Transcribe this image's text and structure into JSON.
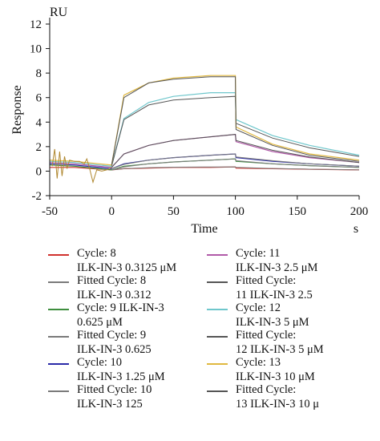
{
  "chart_data": {
    "type": "line",
    "title": "",
    "xlabel": "Time",
    "xunit": "s",
    "ylabel": "Response",
    "yunit": "RU",
    "xlim": [
      -50,
      200
    ],
    "ylim": [
      -2,
      12
    ],
    "xticks": [
      "-50",
      "0",
      "50",
      "100",
      "150",
      "200"
    ],
    "yticks": [
      "-2",
      "0",
      "2",
      "4",
      "6",
      "8",
      "10",
      "12"
    ],
    "injection_start": 0,
    "injection_end": 100,
    "series": [
      {
        "name": "Cycle: 8\nILK-IN-3 0.3125 μM",
        "color": "#d0312d",
        "kind": "raw",
        "x": [
          -50,
          -30,
          0,
          10,
          30,
          50,
          80,
          100,
          100.5,
          130,
          160,
          200
        ],
        "y": [
          0.3,
          0.3,
          0.1,
          0.2,
          0.25,
          0.3,
          0.3,
          0.35,
          0.25,
          0.2,
          0.15,
          0.1
        ]
      },
      {
        "name": "Fitted Cycle: 8\nILK-IN-3 0.312",
        "color": "#7a7a7a",
        "kind": "fit",
        "x": [
          0,
          10,
          30,
          50,
          80,
          100,
          100.5,
          130,
          160,
          200
        ],
        "y": [
          0.1,
          0.2,
          0.28,
          0.32,
          0.34,
          0.35,
          0.3,
          0.22,
          0.16,
          0.1
        ]
      },
      {
        "name": "Cycle: 9 ILK-IN-3\n0.625 μM",
        "color": "#3e8e3e",
        "kind": "raw",
        "x": [
          -50,
          -30,
          0,
          10,
          30,
          50,
          80,
          100,
          100.5,
          130,
          160,
          200
        ],
        "y": [
          0.5,
          0.4,
          0.1,
          0.4,
          0.6,
          0.75,
          0.9,
          1.0,
          0.8,
          0.6,
          0.45,
          0.3
        ]
      },
      {
        "name": "Fitted Cycle: 9\nILK-IN-3 0.625",
        "color": "#7a7a7a",
        "kind": "fit",
        "x": [
          0,
          10,
          30,
          50,
          80,
          100,
          100.5,
          130,
          160,
          200
        ],
        "y": [
          0.1,
          0.35,
          0.6,
          0.75,
          0.9,
          1.0,
          0.85,
          0.6,
          0.45,
          0.3
        ]
      },
      {
        "name": "Cycle: 10\nILK-IN-3 1.25 μM",
        "color": "#2a2aa8",
        "kind": "raw",
        "x": [
          -50,
          -30,
          0,
          10,
          30,
          50,
          80,
          100,
          100.5,
          130,
          160,
          200
        ],
        "y": [
          0.6,
          0.5,
          0.2,
          0.6,
          0.9,
          1.1,
          1.3,
          1.4,
          1.1,
          0.8,
          0.6,
          0.4
        ]
      },
      {
        "name": "Fitted Cycle: 10\nILK-IN-3 125",
        "color": "#7a7a7a",
        "kind": "fit",
        "x": [
          0,
          10,
          30,
          50,
          80,
          100,
          100.5,
          130,
          160,
          200
        ],
        "y": [
          0.2,
          0.55,
          0.9,
          1.1,
          1.3,
          1.4,
          1.15,
          0.85,
          0.6,
          0.4
        ]
      },
      {
        "name": "Cycle: 11\nILK-IN-3 2.5 μM",
        "color": "#b05aa8",
        "kind": "raw",
        "x": [
          -50,
          -30,
          0,
          10,
          30,
          50,
          80,
          100,
          100.5,
          130,
          160,
          200
        ],
        "y": [
          0.7,
          0.6,
          0.3,
          1.4,
          2.1,
          2.5,
          2.8,
          3.0,
          2.4,
          1.6,
          1.1,
          0.7
        ]
      },
      {
        "name": "Fitted Cycle:\n11 ILK-IN-3 2.5",
        "color": "#555555",
        "kind": "fit",
        "x": [
          0,
          10,
          30,
          50,
          80,
          100,
          100.5,
          130,
          160,
          200
        ],
        "y": [
          0.3,
          1.4,
          2.1,
          2.5,
          2.8,
          3.0,
          2.5,
          1.7,
          1.15,
          0.7
        ]
      },
      {
        "name": "Cycle: 12\nILK-IN-3 5 μM",
        "color": "#6fc7cc",
        "kind": "raw",
        "x": [
          -50,
          -30,
          0,
          10,
          30,
          50,
          80,
          100,
          100.5,
          130,
          160,
          200
        ],
        "y": [
          0.8,
          0.7,
          0.4,
          4.3,
          5.6,
          6.1,
          6.4,
          6.4,
          4.2,
          2.9,
          2.1,
          1.3
        ]
      },
      {
        "name": "Fitted Cycle:\n12 ILK-IN-3 5 μM",
        "color": "#555555",
        "kind": "fit",
        "x": [
          0,
          10,
          30,
          50,
          80,
          100,
          100.5,
          130,
          160,
          200
        ],
        "y": [
          0.4,
          4.2,
          5.4,
          5.8,
          6.0,
          6.1,
          3.9,
          2.7,
          1.9,
          1.2
        ]
      },
      {
        "name": "Cycle: 13\nILK-IN-3 10 μM",
        "color": "#e0b840",
        "kind": "raw",
        "x": [
          -50,
          -30,
          0,
          10,
          30,
          50,
          80,
          100,
          100.5,
          130,
          160,
          200
        ],
        "y": [
          0.9,
          0.8,
          0.5,
          6.2,
          7.2,
          7.6,
          7.8,
          7.8,
          3.6,
          2.2,
          1.4,
          0.9
        ]
      },
      {
        "name": "Fitted Cycle:\n13 ILK-IN-3 10 μ",
        "color": "#555555",
        "kind": "fit",
        "x": [
          0,
          10,
          30,
          50,
          80,
          100,
          100.5,
          130,
          160,
          200
        ],
        "y": [
          0.5,
          6.0,
          7.2,
          7.5,
          7.7,
          7.7,
          3.4,
          2.1,
          1.3,
          0.8
        ]
      }
    ],
    "grid": false,
    "legend_placement": "bottom"
  }
}
